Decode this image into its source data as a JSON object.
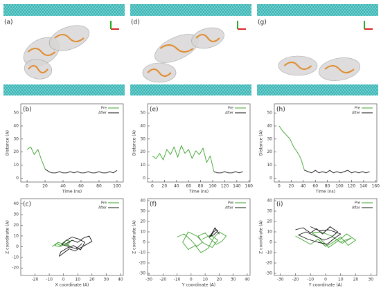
{
  "panels": [
    {
      "label": "(a)"
    },
    {
      "label": "(d)"
    },
    {
      "label": "(g)"
    }
  ],
  "chart_data": [
    {
      "type": "line",
      "label": "(b)",
      "xlabel": "Time (ns)",
      "ylabel": "Distance (A)",
      "legend": "upper right",
      "x": [
        0,
        4,
        8,
        12,
        16,
        20,
        24,
        28,
        32,
        36,
        40,
        44,
        48,
        52,
        56,
        60,
        64,
        68,
        72,
        76,
        80,
        84,
        88,
        92,
        96,
        100
      ],
      "xlim": [
        -7,
        107
      ],
      "xticks": [
        0,
        20,
        40,
        60,
        80,
        100
      ],
      "ylim": [
        -3,
        57
      ],
      "yticks": [
        0,
        10,
        20,
        30,
        40,
        50
      ],
      "series": [
        {
          "name": "Pre",
          "color": "#3aa12a",
          "values": [
            22,
            24,
            18,
            22,
            14,
            7,
            null,
            null,
            null,
            null,
            null,
            null,
            null,
            null,
            null,
            null,
            null,
            null,
            null,
            null,
            null,
            null,
            null,
            null,
            null,
            null
          ]
        },
        {
          "name": "After",
          "color": "#111111",
          "values": [
            null,
            null,
            null,
            null,
            null,
            7,
            5,
            4,
            4,
            5,
            4,
            4,
            5,
            4,
            5,
            4,
            4,
            5,
            4,
            4,
            5,
            4,
            4,
            5,
            4,
            6
          ]
        }
      ]
    },
    {
      "type": "line",
      "label": "(e)",
      "xlabel": "Time (ns)",
      "ylabel": "Distance (A)",
      "legend": "upper right",
      "x": [
        0,
        6,
        12,
        18,
        24,
        30,
        36,
        42,
        48,
        54,
        60,
        66,
        72,
        78,
        84,
        90,
        96,
        102,
        108,
        114,
        120,
        126,
        132,
        138,
        144,
        150
      ],
      "xlim": [
        -8,
        162
      ],
      "xticks": [
        0,
        20,
        40,
        60,
        80,
        100,
        120,
        140,
        160
      ],
      "ylim": [
        -3,
        57
      ],
      "yticks": [
        0,
        10,
        20,
        30,
        40,
        50
      ],
      "series": [
        {
          "name": "Pre",
          "color": "#3aa12a",
          "values": [
            17,
            15,
            19,
            14,
            22,
            18,
            24,
            16,
            25,
            19,
            22,
            15,
            21,
            18,
            23,
            12,
            17,
            5,
            null,
            null,
            null,
            null,
            null,
            null,
            null,
            null
          ]
        },
        {
          "name": "After",
          "color": "#111111",
          "values": [
            null,
            null,
            null,
            null,
            null,
            null,
            null,
            null,
            null,
            null,
            null,
            null,
            null,
            null,
            null,
            null,
            null,
            5,
            4,
            4,
            5,
            4,
            4,
            5,
            4,
            5
          ]
        }
      ]
    },
    {
      "type": "line",
      "label": "(h)",
      "xlabel": "Time (ns)",
      "ylabel": "Distance (A)",
      "legend": "upper right",
      "x": [
        0,
        6,
        12,
        18,
        24,
        30,
        36,
        42,
        48,
        54,
        60,
        66,
        72,
        78,
        84,
        90,
        96,
        102,
        108,
        114,
        120,
        126,
        132,
        138,
        144,
        150
      ],
      "xlim": [
        -8,
        162
      ],
      "xticks": [
        0,
        20,
        40,
        60,
        80,
        100,
        120,
        140,
        160
      ],
      "ylim": [
        -3,
        57
      ],
      "yticks": [
        0,
        10,
        20,
        30,
        40,
        50
      ],
      "series": [
        {
          "name": "Pre",
          "color": "#3aa12a",
          "values": [
            40,
            36,
            33,
            30,
            24,
            20,
            15,
            6,
            null,
            null,
            null,
            null,
            null,
            null,
            null,
            null,
            null,
            null,
            null,
            null,
            null,
            null,
            null,
            null,
            null,
            null
          ]
        },
        {
          "name": "After",
          "color": "#111111",
          "values": [
            null,
            null,
            null,
            null,
            null,
            null,
            null,
            6,
            5,
            4,
            6,
            4,
            5,
            4,
            6,
            4,
            5,
            4,
            5,
            6,
            4,
            5,
            4,
            5,
            4,
            5
          ]
        }
      ]
    },
    {
      "type": "line",
      "label": "(c)",
      "xlabel": "X coordinate (A)",
      "ylabel": "Z coordinate (A)",
      "legend": "upper right",
      "xlim": [
        -30,
        42
      ],
      "xticks": [
        -20,
        -10,
        0,
        10,
        20,
        30,
        40
      ],
      "ylim": [
        -27,
        45
      ],
      "yticks": [
        -20,
        -10,
        0,
        10,
        20,
        30,
        40
      ],
      "series": [
        {
          "name": "Pre",
          "color": "#3aa12a",
          "x": [
            -8,
            -5,
            -2,
            0,
            3,
            5,
            2,
            -1,
            -4,
            -6,
            -3,
            1,
            4,
            2
          ],
          "values": [
            0,
            3,
            1,
            4,
            2,
            5,
            6,
            3,
            4,
            1,
            0,
            2,
            1,
            3
          ]
        },
        {
          "name": "After",
          "color": "#111111",
          "x": [
            2,
            6,
            10,
            14,
            18,
            20,
            16,
            12,
            8,
            4,
            0,
            -3,
            -2,
            3,
            7,
            12,
            15,
            11,
            6,
            2,
            -1,
            4,
            9,
            13
          ],
          "values": [
            3,
            6,
            4,
            8,
            10,
            5,
            2,
            -1,
            -4,
            -2,
            -6,
            -9,
            -5,
            -1,
            1,
            -3,
            4,
            7,
            9,
            6,
            2,
            0,
            -2,
            3
          ]
        }
      ]
    },
    {
      "type": "line",
      "label": "(f)",
      "xlabel": "Y coordinate (A)",
      "ylabel": "Z coordinate (A)",
      "legend": "upper right",
      "xlim": [
        -31,
        42
      ],
      "xticks": [
        -30,
        -20,
        -10,
        0,
        10,
        20,
        30,
        40
      ],
      "ylim": [
        -32,
        42
      ],
      "yticks": [
        -30,
        -20,
        -10,
        0,
        10,
        20,
        30,
        40
      ],
      "series": [
        {
          "name": "Pre",
          "color": "#3aa12a",
          "x": [
            -10,
            -5,
            0,
            4,
            8,
            5,
            10,
            14,
            18,
            22,
            25,
            20,
            16,
            12,
            7,
            3,
            -2,
            -6,
            -2,
            4,
            9,
            15,
            19,
            14,
            8
          ],
          "values": [
            5,
            8,
            2,
            -4,
            0,
            6,
            9,
            3,
            -2,
            1,
            6,
            10,
            4,
            -6,
            -10,
            -3,
            -7,
            0,
            10,
            6,
            -1,
            -5,
            2,
            7,
            3
          ]
        },
        {
          "name": "After",
          "color": "#111111",
          "x": [
            14,
            16,
            18,
            20,
            17,
            15,
            13,
            16,
            19,
            17
          ],
          "values": [
            6,
            10,
            12,
            8,
            14,
            9,
            5,
            7,
            11,
            13
          ]
        }
      ]
    },
    {
      "type": "line",
      "label": "(i)",
      "xlabel": "Y coordinate (A)",
      "ylabel": "Z coordinate (A)",
      "legend": "upper right",
      "xlim": [
        -34,
        34
      ],
      "xticks": [
        -30,
        -20,
        -10,
        0,
        10,
        20,
        30
      ],
      "ylim": [
        -32,
        42
      ],
      "yticks": [
        -30,
        -20,
        -10,
        0,
        10,
        20,
        30,
        40
      ],
      "series": [
        {
          "name": "Pre",
          "color": "#3aa12a",
          "x": [
            -20,
            -15,
            -10,
            -5,
            0,
            5,
            10,
            15,
            20,
            14,
            8,
            2,
            -4,
            -9,
            -3,
            4,
            11,
            17,
            9
          ],
          "values": [
            6,
            2,
            -2,
            3,
            -4,
            0,
            5,
            -3,
            2,
            8,
            1,
            -5,
            4,
            9,
            10,
            6,
            -1,
            4,
            0
          ]
        },
        {
          "name": "After",
          "color": "#111111",
          "x": [
            -20,
            -15,
            -10,
            -6,
            -2,
            3,
            8,
            4,
            -1,
            -7,
            -13,
            -18,
            -12,
            -5,
            1,
            6,
            10,
            2,
            -4,
            -10
          ],
          "values": [
            12,
            14,
            9,
            13,
            8,
            15,
            10,
            5,
            2,
            6,
            10,
            7,
            3,
            0,
            -2,
            4,
            8,
            12,
            11,
            15
          ]
        }
      ]
    }
  ]
}
